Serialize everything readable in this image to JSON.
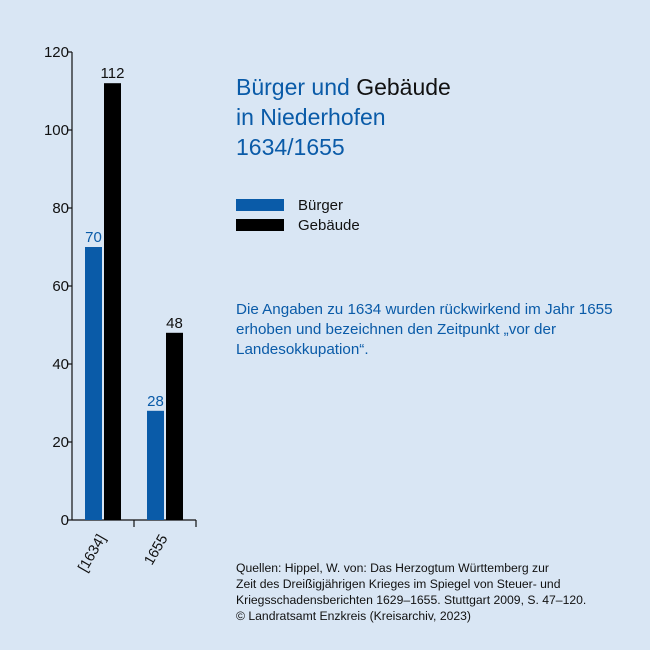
{
  "title": {
    "line1_part1": "Bürger und",
    "line1_part2": "Gebäude",
    "line2": "in Niederhofen",
    "line3": "1634/1655"
  },
  "legend": [
    {
      "label": "Bürger",
      "color": "#0a5ba8"
    },
    {
      "label": "Gebäude",
      "color": "#000000"
    }
  ],
  "note": "Die Angaben zu 1634 wurden rückwirkend im Jahr 1655 erhoben und bezeichnen den Zeitpunkt „vor der Landesokkupation“.",
  "source": {
    "line1": "Quellen: Hippel, W. von: Das Herzogtum Württemberg zur",
    "line2": "Zeit des Dreißigjährigen Krieges im Spiegel von Steuer- und",
    "line3": "Kriegsschadensberichten 1629–1655. Stuttgart 2009, S. 47–120.",
    "line4": "© Landratsamt Enzkreis (Kreisarchiv, 2023)"
  },
  "chart_data": {
    "type": "bar",
    "categories": [
      "[1634]",
      "1655"
    ],
    "series": [
      {
        "name": "Bürger",
        "values": [
          70,
          28
        ],
        "color": "#0a5ba8"
      },
      {
        "name": "Gebäude",
        "values": [
          112,
          48
        ],
        "color": "#000000"
      }
    ],
    "yticks": [
      0,
      20,
      40,
      60,
      80,
      100,
      120
    ],
    "ylim": [
      0,
      120
    ],
    "legend_position": "right",
    "grid": false
  }
}
